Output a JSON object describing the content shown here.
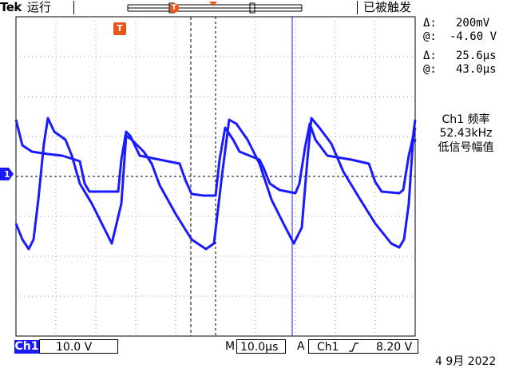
{
  "header": {
    "brand": "Tek",
    "run_state": "运行",
    "trigger_state": "已被触发",
    "trigger_marker": "T"
  },
  "cursor_readout": {
    "v_delta_label": "Δ:",
    "v_delta": "200mV",
    "v_at_label": "@:",
    "v_at": "-4.60 V",
    "t_delta_label": "Δ:",
    "t_delta": "25.6µs",
    "t_at_label": "@:",
    "t_at": "43.0µs"
  },
  "measurement": {
    "title": "Ch1 频率",
    "value": "52.43kHz",
    "note": "低信号幅值"
  },
  "channel": {
    "marker": "1",
    "label": "Ch1",
    "scale": "10.0 V"
  },
  "timebase": {
    "mode": "M",
    "value": "10.0µs"
  },
  "trigger": {
    "source_prefix": "A",
    "source": "Ch1",
    "slope_icon": "rising-edge-icon",
    "level": "8.20 V"
  },
  "date_text": "4 9月  2022",
  "colors": {
    "trace": "#1a1aff",
    "trigger_marker": "#e8561b",
    "graticule": "#000000"
  }
}
